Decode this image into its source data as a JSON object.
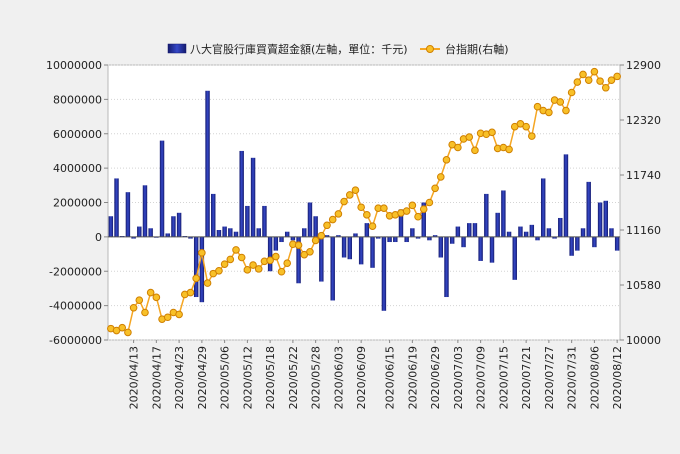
{
  "chart_data": {
    "type": "bar+line",
    "legend": {
      "placement": "top",
      "bar_label": "八大官股行庫買賣超金額(左軸，單位：千元)",
      "line_label": "台指期(右軸)"
    },
    "left_axis": {
      "min": -6000000,
      "max": 10000000,
      "ticks": [
        "10000000",
        "8000000",
        "6000000",
        "4000000",
        "2000000",
        "0",
        "-2000000",
        "-4000000",
        "-6000000"
      ]
    },
    "right_axis": {
      "min": 10000,
      "max": 12900,
      "ticks": [
        "12900",
        "12320",
        "11740",
        "11160",
        "10580",
        "10000"
      ]
    },
    "x_labels": [
      "2020/04/13",
      "2020/04/17",
      "2020/04/23",
      "2020/04/29",
      "2020/05/06",
      "2020/05/12",
      "2020/05/18",
      "2020/05/22",
      "2020/05/28",
      "2020/06/03",
      "2020/06/09",
      "2020/06/15",
      "2020/06/19",
      "2020/06/29",
      "2020/07/03",
      "2020/07/09",
      "2020/07/15",
      "2020/07/21",
      "2020/07/27",
      "2020/07/31",
      "2020/08/06",
      "2020/08/12"
    ],
    "bars": [
      1200000,
      3400000,
      50000,
      2600000,
      -100000,
      600000,
      3000000,
      500000,
      -50000,
      5600000,
      200000,
      1200000,
      1400000,
      50000,
      -100000,
      -3500000,
      -3800000,
      8500000,
      2500000,
      400000,
      600000,
      500000,
      300000,
      5000000,
      1800000,
      4600000,
      500000,
      1800000,
      -2000000,
      -800000,
      -300000,
      300000,
      -200000,
      -2700000,
      500000,
      2000000,
      1200000,
      -2600000,
      100000,
      -3700000,
      100000,
      -1200000,
      -1300000,
      200000,
      -1600000,
      800000,
      -1800000,
      -100000,
      -4300000,
      -300000,
      -300000,
      1600000,
      -300000,
      500000,
      -100000,
      2000000,
      -200000,
      100000,
      -1200000,
      -3500000,
      -400000,
      600000,
      -600000,
      800000,
      800000,
      -1400000,
      2500000,
      -1500000,
      1400000,
      2700000,
      300000,
      -2500000,
      600000,
      300000,
      700000,
      -200000,
      3400000,
      500000,
      -100000,
      1100000,
      4800000,
      -1100000,
      -800000,
      500000,
      3200000,
      -600000,
      2000000,
      2100000,
      500000,
      -800000
    ],
    "line": [
      10120,
      10100,
      10130,
      10080,
      10340,
      10420,
      10290,
      10500,
      10450,
      10220,
      10240,
      10290,
      10270,
      10480,
      10500,
      10650,
      10920,
      10600,
      10700,
      10730,
      10800,
      10850,
      10950,
      10870,
      10740,
      10790,
      10750,
      10830,
      10840,
      10880,
      10720,
      10810,
      11010,
      11000,
      10900,
      10930,
      11050,
      11100,
      11210,
      11270,
      11330,
      11460,
      11530,
      11580,
      11400,
      11320,
      11200,
      11390,
      11390,
      11310,
      11320,
      11340,
      11360,
      11420,
      11300,
      11380,
      11450,
      11600,
      11720,
      11900,
      12060,
      12030,
      12120,
      12140,
      12000,
      12180,
      12170,
      12190,
      12020,
      12030,
      12010,
      12250,
      12280,
      12250,
      12150,
      12460,
      12420,
      12400,
      12530,
      12510,
      12420,
      12610,
      12720,
      12800,
      12740,
      12830,
      12730,
      12660,
      12740,
      12780
    ]
  }
}
